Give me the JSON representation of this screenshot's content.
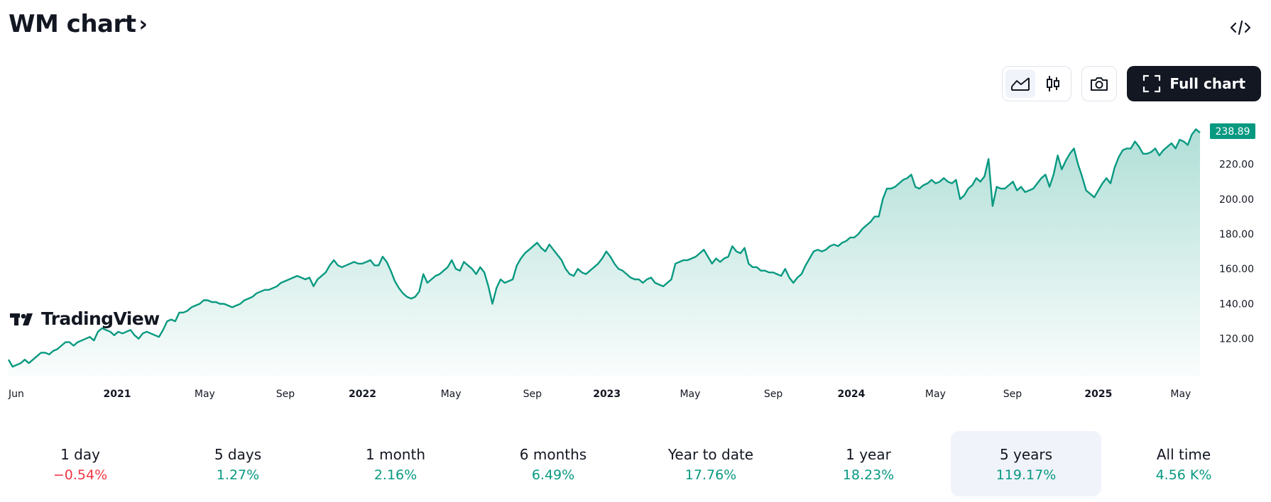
{
  "header": {
    "title": "WM chart",
    "chevron": "›"
  },
  "toolbar": {
    "full_chart_label": "Full chart",
    "icons": [
      "area-chart-icon",
      "candles-icon",
      "camera-icon",
      "fullscreen-icon",
      "embed-code-icon"
    ]
  },
  "watermark": "TradingView",
  "colors": {
    "line": "#089981",
    "negative": "#f23645",
    "text": "#131722"
  },
  "chart_data": {
    "type": "area",
    "ylim": [
      102,
      245
    ],
    "yticks": [
      120,
      140,
      160,
      180,
      200,
      220
    ],
    "ytick_labels": [
      "120.00",
      "140.00",
      "160.00",
      "180.00",
      "200.00",
      "220.00"
    ],
    "last_value": 238.89,
    "last_label": "238.89",
    "x_labels": [
      {
        "t": 0.0,
        "text": "Jun",
        "bold": false
      },
      {
        "t": 12.4,
        "text": "2021",
        "bold": true
      },
      {
        "t": 22.4,
        "text": "May",
        "bold": false
      },
      {
        "t": 31.6,
        "text": "Sep",
        "bold": false
      },
      {
        "t": 40.4,
        "text": "2022",
        "bold": true
      },
      {
        "t": 50.5,
        "text": "May",
        "bold": false
      },
      {
        "t": 59.8,
        "text": "Sep",
        "bold": false
      },
      {
        "t": 68.3,
        "text": "2023",
        "bold": true
      },
      {
        "t": 77.8,
        "text": "May",
        "bold": false
      },
      {
        "t": 87.3,
        "text": "Sep",
        "bold": false
      },
      {
        "t": 96.2,
        "text": "2024",
        "bold": true
      },
      {
        "t": 105.8,
        "text": "May",
        "bold": false
      },
      {
        "t": 114.6,
        "text": "Sep",
        "bold": false
      },
      {
        "t": 124.4,
        "text": "2025",
        "bold": true
      },
      {
        "t": 133.8,
        "text": "May",
        "bold": false
      }
    ],
    "x_max": 136,
    "values": [
      108,
      104,
      105,
      106,
      108,
      106,
      108,
      110,
      112,
      112,
      111,
      113,
      114,
      116,
      118,
      118,
      116,
      118,
      119,
      120,
      121,
      119,
      124,
      126,
      125,
      124,
      122,
      124,
      123,
      124,
      125,
      122,
      120,
      123,
      124,
      123,
      122,
      121,
      125,
      130,
      131,
      130,
      135,
      135,
      136,
      138,
      139,
      140,
      142,
      142,
      141,
      141,
      140,
      140,
      139,
      138,
      139,
      140,
      142,
      143,
      144,
      146,
      147,
      148,
      148,
      149,
      150,
      152,
      153,
      154,
      155,
      156,
      155,
      154,
      155,
      150,
      154,
      156,
      158,
      162,
      165,
      162,
      161,
      162,
      163,
      164,
      163,
      163,
      164,
      165,
      162,
      162,
      167,
      164,
      159,
      153,
      149,
      146,
      144,
      143,
      144,
      147,
      157,
      152,
      154,
      156,
      157,
      159,
      161,
      165,
      160,
      159,
      164,
      162,
      160,
      157,
      161,
      158,
      150,
      140,
      149,
      154,
      152,
      153,
      154,
      162,
      166,
      169,
      171,
      173,
      175,
      172,
      170,
      174,
      171,
      168,
      165,
      160,
      157,
      156,
      160,
      158,
      157,
      159,
      161,
      163,
      166,
      170,
      167,
      163,
      160,
      159,
      157,
      155,
      154,
      154,
      152,
      154,
      155,
      152,
      151,
      150,
      152,
      154,
      163,
      164,
      165,
      165,
      166,
      167,
      169,
      171,
      167,
      163,
      166,
      164,
      166,
      167,
      173,
      170,
      169,
      172,
      163,
      161,
      161,
      159,
      159,
      158,
      158,
      157,
      156,
      160,
      155,
      152,
      155,
      157,
      162,
      166,
      170,
      171,
      170,
      171,
      173,
      174,
      173,
      175,
      176,
      178,
      178,
      180,
      183,
      185,
      187,
      190,
      190,
      200,
      206,
      206,
      207,
      209,
      211,
      212,
      214,
      207,
      206,
      208,
      209,
      211,
      209,
      210,
      212,
      210,
      209,
      211,
      200,
      202,
      206,
      208,
      212,
      210,
      213,
      223,
      196,
      207,
      206,
      206,
      208,
      210,
      205,
      207,
      204,
      205,
      206,
      209,
      212,
      214,
      207,
      214,
      225,
      217,
      222,
      226,
      229,
      220,
      213,
      205,
      203,
      201,
      205,
      209,
      212,
      209,
      218,
      224,
      228,
      229,
      229,
      233,
      230,
      226,
      226,
      227,
      229,
      225,
      228,
      230,
      232,
      229,
      234,
      233,
      231,
      237,
      240,
      238
    ]
  },
  "periods": [
    {
      "label": "1 day",
      "value": "−0.54%",
      "dir": "down"
    },
    {
      "label": "5 days",
      "value": "1.27%",
      "dir": "up"
    },
    {
      "label": "1 month",
      "value": "2.16%",
      "dir": "up"
    },
    {
      "label": "6 months",
      "value": "6.49%",
      "dir": "up"
    },
    {
      "label": "Year to date",
      "value": "17.76%",
      "dir": "up"
    },
    {
      "label": "1 year",
      "value": "18.23%",
      "dir": "up"
    },
    {
      "label": "5 years",
      "value": "119.17%",
      "dir": "up",
      "active": true
    },
    {
      "label": "All time",
      "value": "4.56 K%",
      "dir": "up"
    }
  ]
}
